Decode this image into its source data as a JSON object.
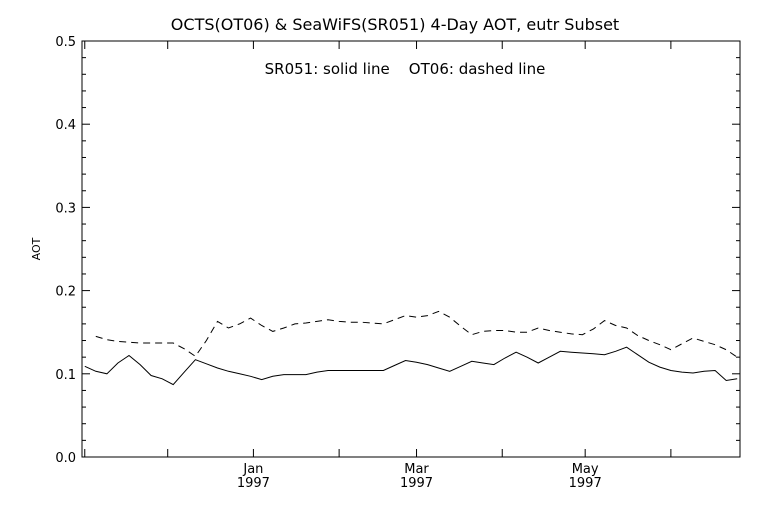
{
  "chart_data": {
    "type": "line",
    "title": "OCTS(OT06) & SeaWiFS(SR051) 4-Day AOT, eutr Subset",
    "annotation": "SR051: solid line    OT06: dashed line",
    "xlabel": "",
    "ylabel": "AOT",
    "ylim": [
      0,
      0.5
    ],
    "yticks": [
      "0.0",
      "0.1",
      "0.2",
      "0.3",
      "0.4",
      "0.5"
    ],
    "xticks": [
      {
        "month": "Jan",
        "year": "1997"
      },
      {
        "month": "Mar",
        "year": "1997"
      },
      {
        "month": "May",
        "year": "1997"
      }
    ],
    "x": [
      "1996-11-01",
      "1996-11-05",
      "1996-11-09",
      "1996-11-13",
      "1996-11-17",
      "1996-11-21",
      "1996-11-25",
      "1996-11-29",
      "1996-12-03",
      "1996-12-07",
      "1996-12-11",
      "1996-12-15",
      "1996-12-19",
      "1996-12-23",
      "1996-12-27",
      "1996-12-31",
      "1997-01-04",
      "1997-01-08",
      "1997-01-12",
      "1997-01-16",
      "1997-01-20",
      "1997-01-24",
      "1997-01-28",
      "1997-02-01",
      "1997-02-05",
      "1997-02-09",
      "1997-02-13",
      "1997-02-17",
      "1997-02-21",
      "1997-02-25",
      "1997-03-01",
      "1997-03-05",
      "1997-03-09",
      "1997-03-13",
      "1997-03-17",
      "1997-03-21",
      "1997-03-25",
      "1997-03-29",
      "1997-04-02",
      "1997-04-06",
      "1997-04-10",
      "1997-04-14",
      "1997-04-18",
      "1997-04-22",
      "1997-04-26",
      "1997-04-30",
      "1997-05-04",
      "1997-05-08",
      "1997-05-12",
      "1997-05-16",
      "1997-05-20",
      "1997-05-24",
      "1997-05-28",
      "1997-06-01",
      "1997-06-05",
      "1997-06-09",
      "1997-06-13",
      "1997-06-17",
      "1997-06-21",
      "1997-06-25"
    ],
    "series": [
      {
        "name": "SR051",
        "style": "solid",
        "values": [
          0.109,
          0.103,
          0.1,
          0.113,
          0.122,
          0.111,
          0.098,
          0.094,
          0.087,
          0.102,
          0.117,
          0.112,
          0.107,
          0.103,
          0.1,
          0.097,
          0.093,
          0.097,
          0.099,
          0.099,
          0.099,
          0.102,
          0.104,
          0.104,
          0.104,
          0.104,
          0.104,
          0.104,
          0.11,
          0.116,
          0.114,
          0.111,
          0.107,
          0.103,
          0.109,
          0.115,
          0.113,
          0.111,
          0.119,
          0.126,
          0.12,
          0.113,
          0.12,
          0.127,
          0.126,
          0.125,
          0.124,
          0.123,
          0.127,
          0.132,
          0.123,
          0.114,
          0.108,
          0.104,
          0.102,
          0.101,
          0.103,
          0.104,
          0.092,
          0.094
        ]
      },
      {
        "name": "OT06",
        "style": "dashed",
        "values": [
          null,
          0.145,
          0.141,
          0.139,
          0.138,
          0.137,
          0.137,
          0.137,
          0.137,
          0.13,
          0.121,
          0.14,
          0.163,
          0.155,
          0.16,
          0.167,
          0.158,
          0.151,
          0.155,
          0.16,
          0.161,
          0.163,
          0.165,
          0.163,
          0.162,
          0.162,
          0.161,
          0.16,
          0.165,
          0.17,
          0.168,
          0.17,
          0.175,
          0.168,
          0.157,
          0.147,
          0.151,
          0.152,
          0.152,
          0.15,
          0.15,
          0.155,
          0.152,
          0.15,
          0.148,
          0.147,
          0.154,
          0.164,
          0.158,
          0.155,
          0.146,
          0.14,
          0.135,
          0.129,
          0.136,
          0.143,
          0.139,
          0.135,
          0.129,
          0.12
        ]
      }
    ],
    "grid": false,
    "legend": "none"
  }
}
